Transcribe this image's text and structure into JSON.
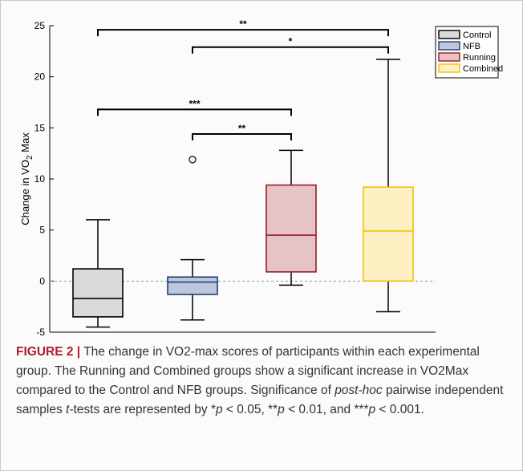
{
  "chart_data": {
    "type": "box",
    "ylabel": {
      "main": "Change in VO",
      "sub": "2",
      "tail": " Max"
    },
    "ylim": [
      -5,
      25
    ],
    "yticks": [
      -5,
      0,
      5,
      10,
      15,
      20,
      25
    ],
    "reference_line": 0,
    "groups": [
      {
        "name": "Control",
        "whisker_low": -4.5,
        "q1": -3.5,
        "median": -1.7,
        "q3": 1.2,
        "whisker_high": 6.0,
        "outliers": [],
        "stroke": "#000000",
        "fill": "#d9d9d9"
      },
      {
        "name": "NFB",
        "whisker_low": -3.8,
        "q1": -1.3,
        "median": -0.1,
        "q3": 0.4,
        "whisker_high": 2.1,
        "outliers": [
          11.9
        ],
        "stroke": "#1f3c73",
        "fill": "#bcc7dc"
      },
      {
        "name": "Running",
        "whisker_low": -0.4,
        "q1": 0.9,
        "median": 4.5,
        "q3": 9.4,
        "whisker_high": 12.8,
        "outliers": [],
        "stroke": "#9b1b1e",
        "fill": "#e6c3c6"
      },
      {
        "name": "Combined",
        "whisker_low": -3.0,
        "q1": 0.0,
        "median": 4.9,
        "q3": 9.2,
        "whisker_high": 21.7,
        "outliers": [],
        "stroke": "#f2c00b",
        "fill": "#fcefc2"
      }
    ],
    "significance": [
      {
        "from": 0,
        "to": 3,
        "label": "**",
        "y": 24.6
      },
      {
        "from": 1,
        "to": 3,
        "label": "*",
        "y": 22.9
      },
      {
        "from": 0,
        "to": 2,
        "label": "***",
        "y": 16.8
      },
      {
        "from": 1,
        "to": 2,
        "label": "**",
        "y": 14.4
      }
    ],
    "legend_position": "top-right"
  },
  "caption": {
    "label": "FIGURE 2 |",
    "line1": " The change in VO2-max scores of participants within each experimental group. The Running and Combined groups show a significant increase in VO2Max compared to the Control and NFB groups. Significance of ",
    "italic1": "post-hoc",
    "line2": " pairwise independent samples ",
    "italic2": "t",
    "line3": "-tests are represented by *",
    "p1": "p",
    "t1": " < 0.05, **",
    "p2": "p",
    "t2": " < 0.01, and ***",
    "p3": "p",
    "t3": " < 0.001."
  }
}
